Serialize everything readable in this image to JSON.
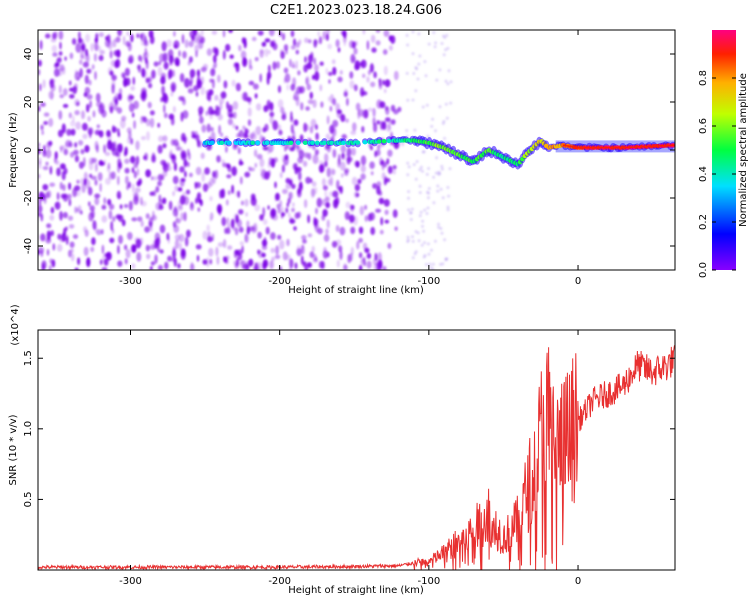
{
  "title": "C2E1.2023.023.18.24.G06",
  "chart_data": [
    {
      "type": "heatmap",
      "xlabel": "Height of straight line (km)",
      "ylabel": "Frequency (Hz)",
      "xlim": [
        -362,
        65
      ],
      "ylim": [
        -50,
        50
      ],
      "x_ticks": [
        -300,
        -200,
        -100,
        0
      ],
      "x_tick_labels": [
        "-300",
        "-200",
        "-100",
        "0"
      ],
      "y_ticks": [
        -40,
        -20,
        0,
        20,
        40
      ],
      "y_tick_labels": [
        "-40",
        "-20",
        "0",
        "20",
        "40"
      ],
      "colorbar": {
        "label": "Normalized spectral amplitude",
        "range": [
          0,
          1
        ],
        "ticks": [
          0.0,
          0.2,
          0.4,
          0.6,
          0.8
        ],
        "tick_labels": [
          "0.0",
          "0.2",
          "0.4",
          "0.6",
          "0.8"
        ]
      },
      "ridge": {
        "x": [
          -250,
          -200,
          -150,
          -120,
          -110,
          -100,
          -90,
          -80,
          -70,
          -60,
          -50,
          -40,
          -35,
          -30,
          -25,
          -20,
          -10,
          0,
          10,
          30,
          65
        ],
        "frequency": [
          3,
          3,
          3,
          4,
          4,
          3,
          1,
          -2,
          -5,
          0,
          -3,
          -6,
          -2,
          1,
          4,
          1,
          2,
          1,
          1,
          1,
          2
        ],
        "amplitude": [
          0.3,
          0.35,
          0.35,
          0.4,
          0.45,
          0.5,
          0.55,
          0.5,
          0.45,
          0.5,
          0.4,
          0.45,
          0.55,
          0.6,
          0.65,
          0.7,
          0.75,
          0.85,
          0.9,
          0.9,
          0.9
        ]
      }
    },
    {
      "type": "line",
      "xlabel": "Height of straight line (km)",
      "ylabel": "SNR (10 * v/v)",
      "y_scale_label": "(x10^4)",
      "xlim": [
        -362,
        65
      ],
      "ylim": [
        0,
        1.7
      ],
      "x_ticks": [
        -300,
        -200,
        -100,
        0
      ],
      "x_tick_labels": [
        "-300",
        "-200",
        "-100",
        "0"
      ],
      "y_ticks": [
        0.5,
        1.0,
        1.5
      ],
      "y_tick_labels": [
        "0.5",
        "1.0",
        "1.5"
      ],
      "color": "#e83030",
      "series": [
        {
          "x": [
            -362,
            -300,
            -200,
            -150,
            -120,
            -110,
            -100,
            -90,
            -80,
            -70,
            -60,
            -50,
            -40,
            -30,
            -25,
            -20,
            -15,
            -10,
            0,
            10,
            20,
            30,
            40,
            50,
            60,
            65
          ],
          "y": [
            0.02,
            0.02,
            0.02,
            0.025,
            0.03,
            0.05,
            0.06,
            0.12,
            0.2,
            0.28,
            0.4,
            0.22,
            0.35,
            0.7,
            0.95,
            1.1,
            0.85,
            0.9,
            1.05,
            1.2,
            1.25,
            1.3,
            1.45,
            1.4,
            1.45,
            1.5
          ]
        }
      ]
    }
  ]
}
